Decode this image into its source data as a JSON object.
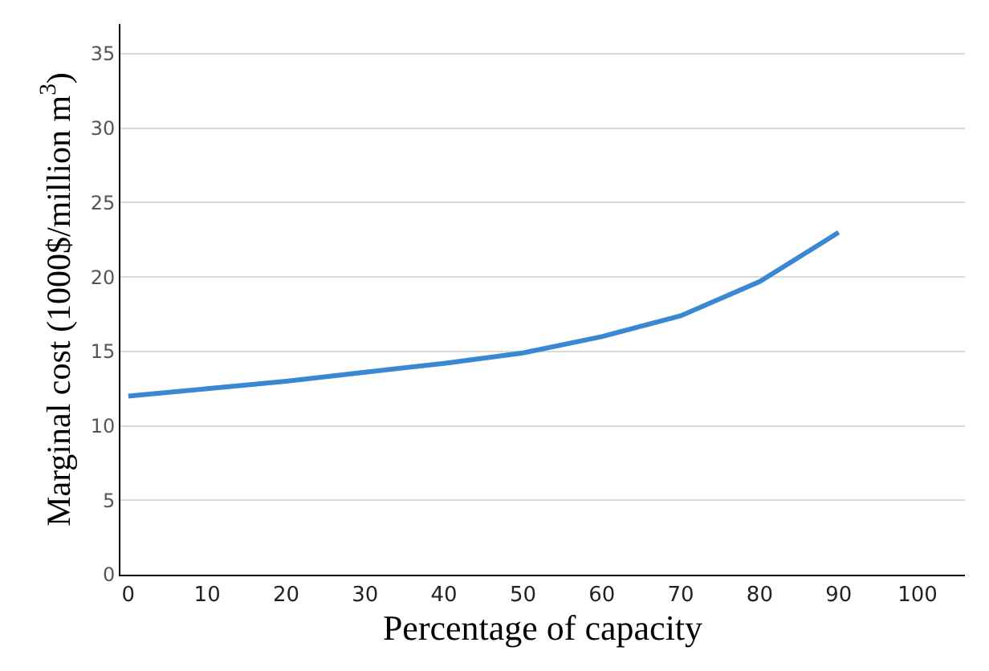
{
  "chart_data": {
    "type": "line",
    "xlabel": "Percentage of capacity",
    "ylabel": "Marginal cost (1000$/million m$^{3}$)",
    "x": [
      0,
      10,
      20,
      30,
      40,
      50,
      60,
      70,
      80,
      90
    ],
    "series": [
      {
        "color": "#3a87d4",
        "values": [
          12,
          12.5,
          13,
          13.6,
          14.2,
          14.9,
          16,
          17.4,
          19.7,
          23
        ]
      }
    ],
    "xlim": [
      -1,
      106
    ],
    "xticks": [
      0,
      10,
      20,
      30,
      40,
      50,
      60,
      70,
      80,
      90,
      100
    ],
    "ylim": [
      0,
      37
    ],
    "yticks": [
      0,
      5,
      10,
      15,
      20,
      25,
      30,
      35
    ],
    "grid": "y",
    "marker": "none",
    "line_style": "solid"
  }
}
